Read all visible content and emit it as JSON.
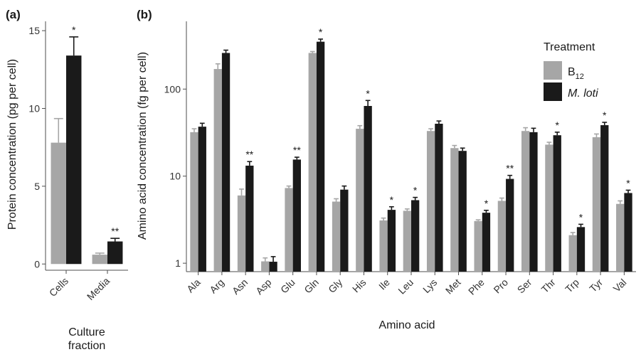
{
  "chart_data": [
    {
      "panel_label": "(a)",
      "type": "bar",
      "categories": [
        "Cells",
        "Media"
      ],
      "series": [
        {
          "values": [
            7.8,
            0.6
          ],
          "errors": [
            1.55,
            0.1
          ],
          "color": "#a6a6a6"
        },
        {
          "values": [
            13.4,
            1.45
          ],
          "errors": [
            1.2,
            0.2
          ],
          "color": "#1a1a1a"
        }
      ],
      "significance": [
        "*",
        "**"
      ],
      "ylabel": "Protein concentration (pg per cell)",
      "xlabel_lines": [
        "Culture",
        "fraction"
      ],
      "ylim": [
        -0.4,
        15.6
      ],
      "yticks": [
        0,
        5,
        10,
        15
      ],
      "ytick_labels": [
        "0",
        "5",
        "10",
        "15"
      ],
      "grid": false
    },
    {
      "panel_label": "(b)",
      "type": "bar",
      "yscale": "log",
      "categories": [
        "Ala",
        "Arg",
        "Asn",
        "Asp",
        "Glu",
        "Gln",
        "Gly",
        "His",
        "Ile",
        "Leu",
        "Lys",
        "Met",
        "Phe",
        "Pro",
        "Ser",
        "Thr",
        "Trp",
        "Tyr",
        "Val"
      ],
      "series": [
        {
          "name_main": "B",
          "name_sub": "12",
          "color": "#a6a6a6",
          "values": [
            32,
            170,
            6,
            1.05,
            7.3,
            260,
            5.1,
            35,
            3.1,
            4.0,
            33,
            21,
            3.05,
            5.2,
            33,
            23,
            2.1,
            28,
            4.8
          ],
          "errors": [
            3,
            25,
            1.1,
            0.1,
            0.4,
            10,
            0.4,
            3,
            0.2,
            0.2,
            2,
            1.5,
            0.1,
            0.4,
            3,
            1.5,
            0.15,
            2.5,
            0.4
          ]
        },
        {
          "name_main": "M. loti",
          "color": "#1a1a1a",
          "values": [
            37,
            260,
            13.2,
            1.04,
            15.5,
            350,
            7,
            64,
            4.1,
            5.3,
            40,
            19.5,
            3.8,
            9.3,
            32,
            29.5,
            2.6,
            38.5,
            6.4
          ],
          "errors": [
            3.5,
            20,
            1.5,
            0.15,
            1.0,
            25,
            0.7,
            10,
            0.35,
            0.4,
            3,
            1.5,
            0.25,
            0.9,
            3.5,
            2.5,
            0.2,
            3,
            0.5
          ]
        }
      ],
      "significance": [
        "",
        "",
        "**",
        "",
        "**",
        "*",
        "",
        "*",
        "*",
        "*",
        "",
        "",
        "*",
        "**",
        "",
        "*",
        "*",
        "*",
        "*"
      ],
      "ylabel": "Amino acid concentration (fg per cell)",
      "xlabel": "Amino acid",
      "ylim": [
        0.8,
        600
      ],
      "yticks": [
        1,
        10,
        100
      ],
      "ytick_labels": [
        "1",
        "10",
        "100"
      ],
      "legend": {
        "title": "Treatment",
        "position": "top-right"
      },
      "grid": false
    }
  ]
}
